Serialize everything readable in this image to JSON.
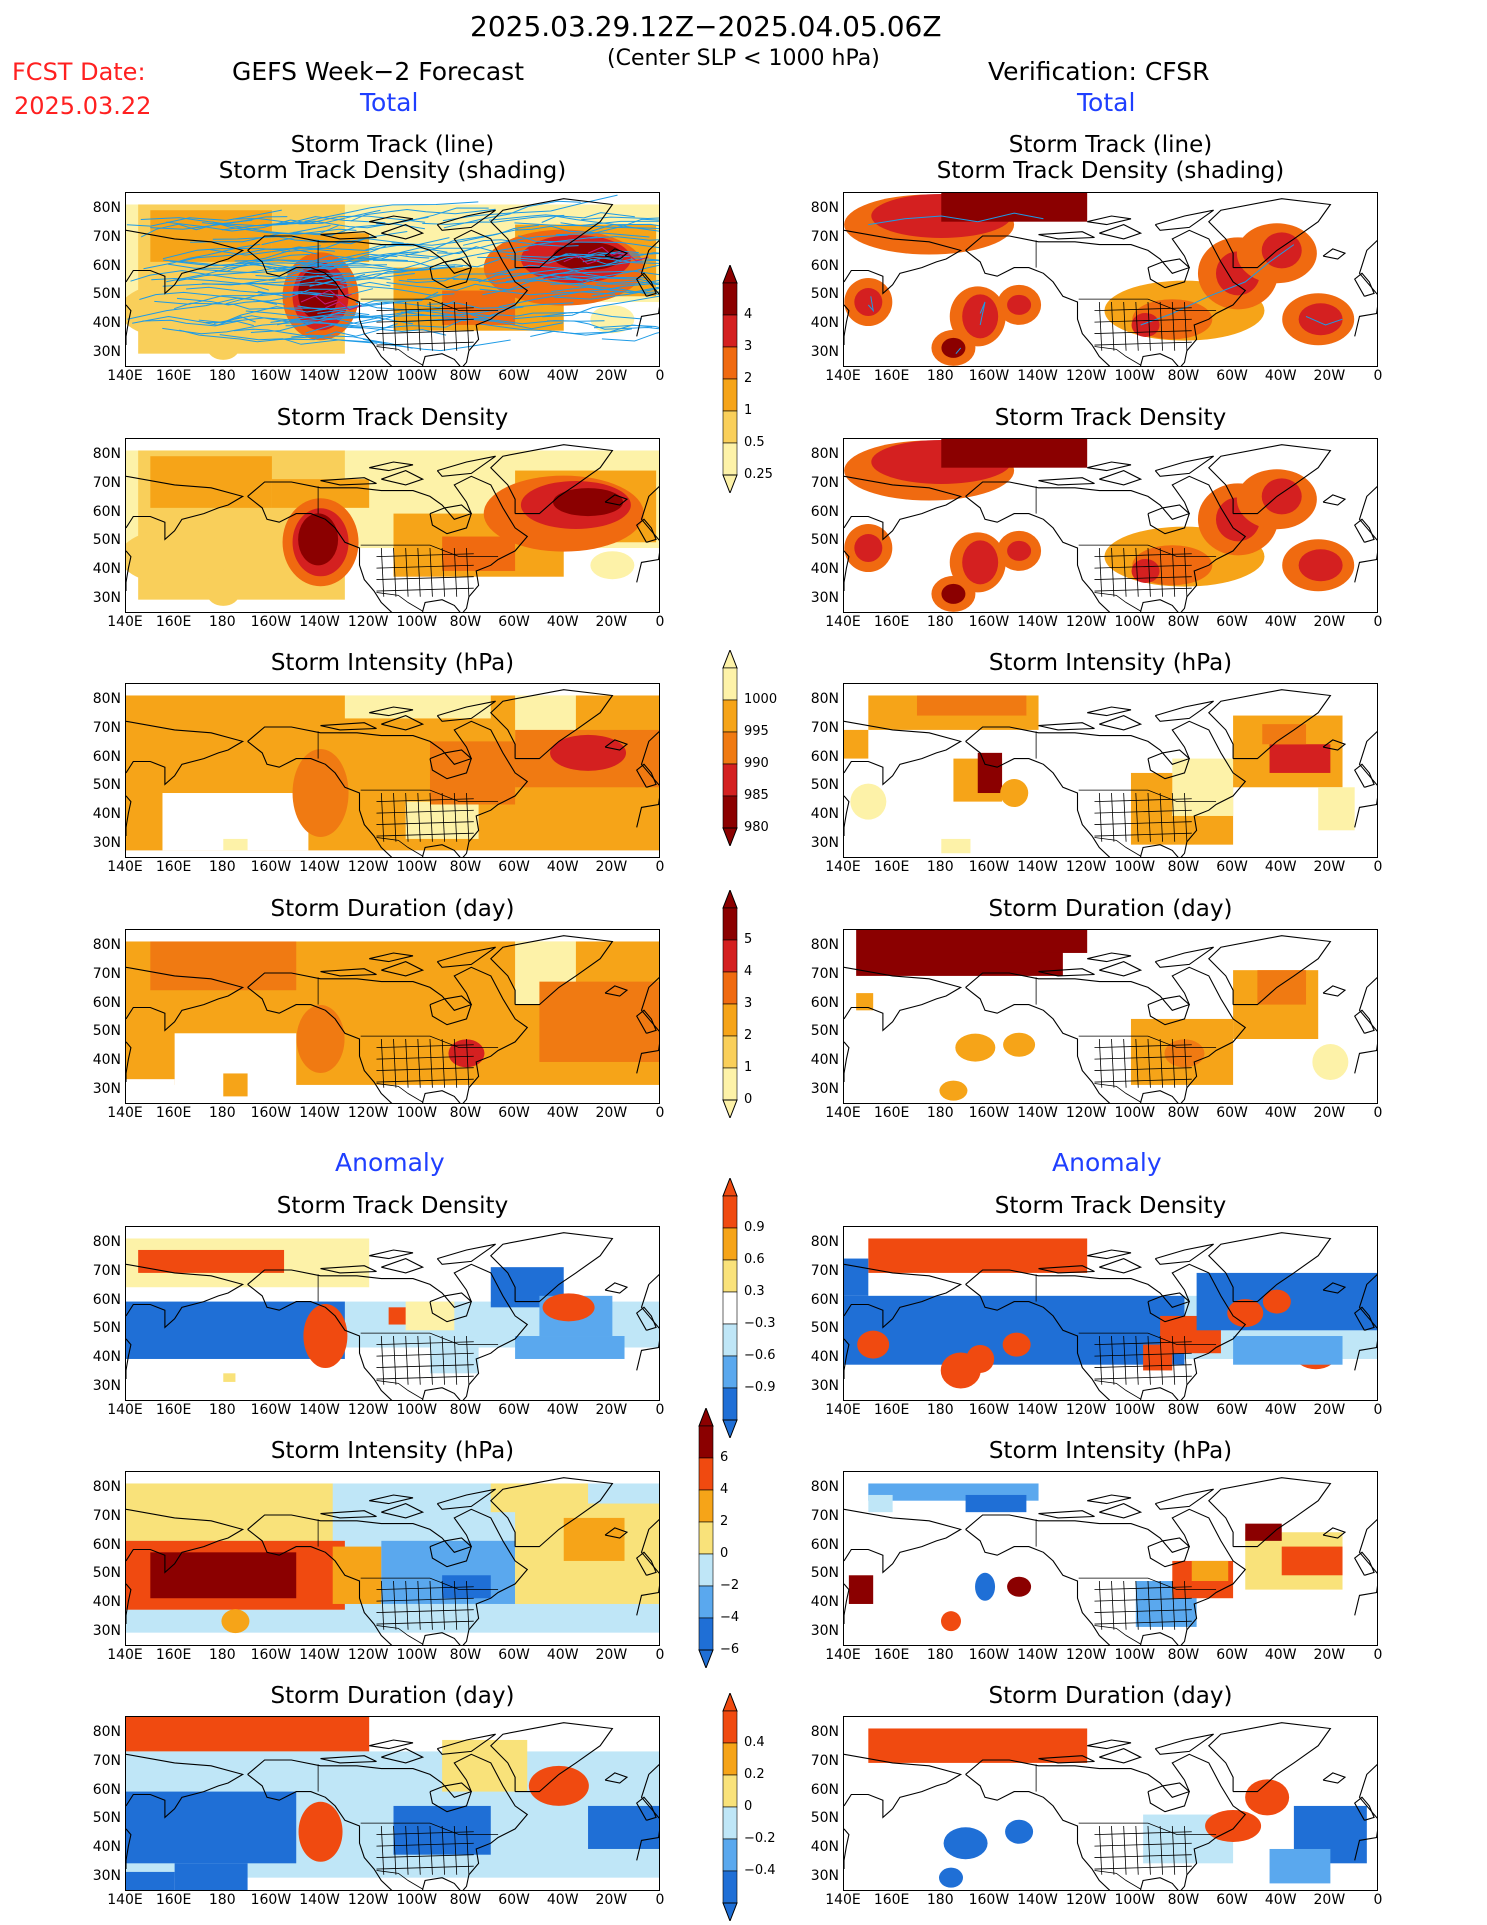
{
  "header": {
    "time_range": "2025.03.29.12Z−2025.04.05.06Z",
    "condition": "(Center SLP < 1000 hPa)",
    "fcst_label": "FCST Date:",
    "fcst_date": "2025.03.22",
    "left_title": "GEFS Week−2 Forecast",
    "right_title": "Verification: CFSR",
    "total_label": "Total",
    "anomaly_label": "Anomaly"
  },
  "panel_titles": {
    "track_line": "Storm Track (line)",
    "track_density_shading": "Storm Track Density (shading)",
    "track_density": "Storm Track Density",
    "intensity": "Storm Intensity (hPa)",
    "duration": "Storm Duration (day)"
  },
  "axes": {
    "lat_ticks": [
      "80N",
      "70N",
      "60N",
      "50N",
      "40N",
      "30N"
    ],
    "lon_ticks": [
      "140E",
      "160E",
      "180",
      "160W",
      "140W",
      "120W",
      "100W",
      "80W",
      "60W",
      "40W",
      "20W",
      "0"
    ]
  },
  "colorbars": {
    "density": {
      "labels": [
        "4",
        "3",
        "2",
        "1",
        "0.5",
        "0.25"
      ],
      "colors": [
        "#8b0000",
        "#d42020",
        "#f06a10",
        "#f6a418",
        "#f9cf5a",
        "#fdf2a8"
      ]
    },
    "intensity": {
      "labels": [
        "1000",
        "995",
        "990",
        "985",
        "980"
      ],
      "colors": [
        "#fdf2a8",
        "#f6a418",
        "#f07a12",
        "#d42020",
        "#8b0000"
      ]
    },
    "duration": {
      "labels": [
        "5",
        "4",
        "3",
        "2",
        "1",
        "0"
      ],
      "colors": [
        "#8b0000",
        "#d42020",
        "#f06a10",
        "#f6a418",
        "#f9cf5a",
        "#fdf2a8"
      ]
    },
    "anom_density": {
      "labels": [
        "0.9",
        "0.6",
        "0.3",
        "−0.3",
        "−0.6",
        "−0.9"
      ],
      "colors": [
        "#f04a10",
        "#f6a418",
        "#f9e27a",
        "#ffffff",
        "#bfe6f7",
        "#5aa8ee",
        "#1f6fd6"
      ]
    },
    "anom_intensity": {
      "labels": [
        "6",
        "4",
        "2",
        "0",
        "−2",
        "−4",
        "−6"
      ],
      "colors": [
        "#8b0000",
        "#f04a10",
        "#f6a418",
        "#f9e27a",
        "#bfe6f7",
        "#5aa8ee",
        "#1f6fd6"
      ]
    },
    "anom_duration": {
      "labels": [
        "0.4",
        "0.2",
        "0",
        "−0.2",
        "−0.4"
      ],
      "colors": [
        "#f04a10",
        "#f6a418",
        "#f9e27a",
        "#bfe6f7",
        "#5aa8ee",
        "#1f6fd6"
      ]
    }
  }
}
